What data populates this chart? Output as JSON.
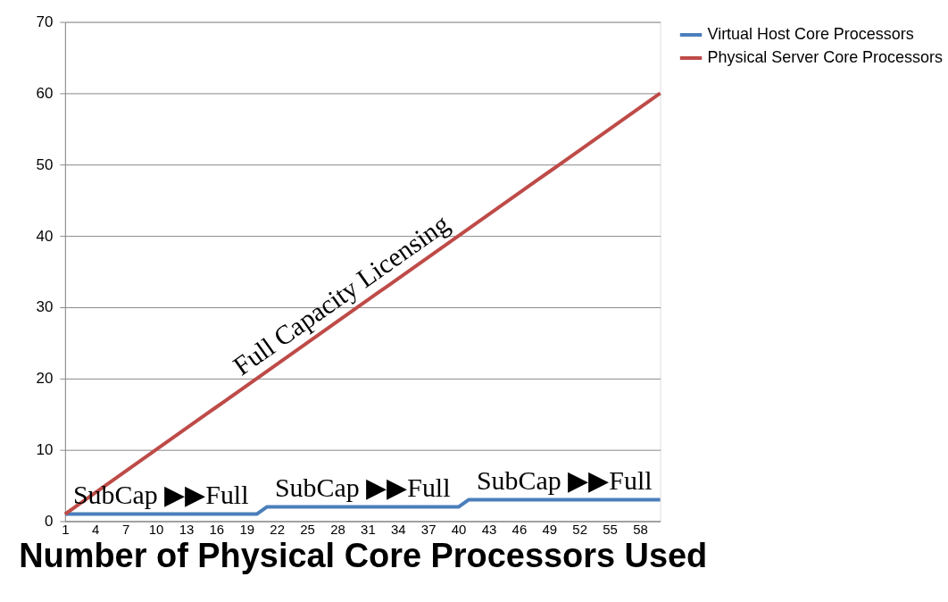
{
  "chart_data": {
    "type": "line",
    "xlabel": "Number of Physical Core Processors Used",
    "x": [
      1,
      2,
      3,
      4,
      5,
      6,
      7,
      8,
      9,
      10,
      11,
      12,
      13,
      14,
      15,
      16,
      17,
      18,
      19,
      20,
      21,
      22,
      23,
      24,
      25,
      26,
      27,
      28,
      29,
      30,
      31,
      32,
      33,
      34,
      35,
      36,
      37,
      38,
      39,
      40,
      41,
      42,
      43,
      44,
      45,
      46,
      47,
      48,
      49,
      50,
      51,
      52,
      53,
      54,
      55,
      56,
      57,
      58,
      59,
      60
    ],
    "series": [
      {
        "name": "Virtual Host Core Processors",
        "color": "#4a7ebb",
        "values": [
          1,
          1,
          1,
          1,
          1,
          1,
          1,
          1,
          1,
          1,
          1,
          1,
          1,
          1,
          1,
          1,
          1,
          1,
          1,
          1,
          2,
          2,
          2,
          2,
          2,
          2,
          2,
          2,
          2,
          2,
          2,
          2,
          2,
          2,
          2,
          2,
          2,
          2,
          2,
          2,
          3,
          3,
          3,
          3,
          3,
          3,
          3,
          3,
          3,
          3,
          3,
          3,
          3,
          3,
          3,
          3,
          3,
          3,
          3,
          3
        ]
      },
      {
        "name": "Physical Server Core Processors",
        "color": "#be4b48",
        "values": [
          1,
          2,
          3,
          4,
          5,
          6,
          7,
          8,
          9,
          10,
          11,
          12,
          13,
          14,
          15,
          16,
          17,
          18,
          19,
          20,
          21,
          22,
          23,
          24,
          25,
          26,
          27,
          28,
          29,
          30,
          31,
          32,
          33,
          34,
          35,
          36,
          37,
          38,
          39,
          40,
          41,
          42,
          43,
          44,
          45,
          46,
          47,
          48,
          49,
          50,
          51,
          52,
          53,
          54,
          55,
          56,
          57,
          58,
          59,
          60
        ]
      }
    ],
    "xlim": [
      1,
      60
    ],
    "xticks": [
      1,
      4,
      7,
      10,
      13,
      16,
      19,
      22,
      25,
      28,
      31,
      34,
      37,
      40,
      43,
      46,
      49,
      52,
      55,
      58
    ],
    "ylim": [
      0,
      70
    ],
    "yticks": [
      0,
      10,
      20,
      30,
      40,
      50,
      60,
      70
    ],
    "grid": "y",
    "legend": "right",
    "marker": "none",
    "line_style": "solid",
    "annotations": [
      {
        "text": "Full Capacity Licensing",
        "x": 29.5,
        "y": 29.5
      },
      {
        "text": "SubCap ▶▶Full",
        "x": 10.5,
        "y": 1
      },
      {
        "text": "SubCap ▶▶Full",
        "x": 30.5,
        "y": 2
      },
      {
        "text": "SubCap ▶▶Full",
        "x": 50.5,
        "y": 3
      }
    ]
  }
}
